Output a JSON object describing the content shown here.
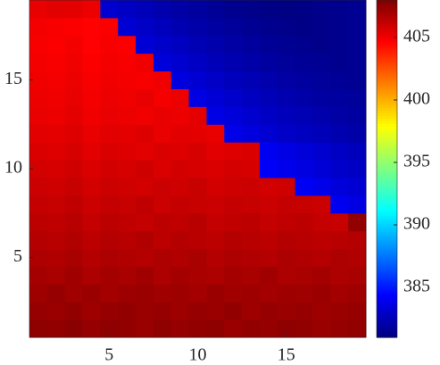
{
  "chart_data": {
    "type": "heatmap",
    "colormap": "jet",
    "x": [
      1,
      2,
      3,
      4,
      5,
      6,
      7,
      8,
      9,
      10,
      11,
      12,
      13,
      14,
      15,
      16,
      17,
      18,
      19
    ],
    "y": [
      1,
      2,
      3,
      4,
      5,
      6,
      7,
      8,
      9,
      10,
      11,
      12,
      13,
      14,
      15,
      16,
      17,
      18,
      19
    ],
    "xlim": [
      0.5,
      19.5
    ],
    "ylim": [
      0.5,
      19.5
    ],
    "xticks": [
      5,
      10,
      15
    ],
    "yticks": [
      5,
      10,
      15
    ],
    "clim": [
      381,
      408
    ],
    "cticks": [
      385,
      390,
      395,
      400,
      405
    ],
    "z": [
      [
        407.6,
        407.5,
        407.7,
        407.4,
        407.6,
        407.5,
        407.3,
        407.6,
        407.4,
        407.5,
        407.6,
        407.3,
        407.5,
        407.4,
        407.6,
        407.5,
        407.3,
        407.4,
        407.5
      ],
      [
        407.4,
        407.3,
        407.5,
        407.2,
        407.4,
        407.5,
        407.3,
        407.4,
        407.2,
        407.4,
        407.3,
        407.5,
        407.2,
        407.4,
        407.3,
        407.4,
        407.2,
        407.3,
        407.4
      ],
      [
        407.2,
        407.4,
        407.1,
        407.3,
        407.0,
        407.2,
        407.3,
        407.1,
        407.2,
        407.0,
        407.3,
        407.1,
        407.2,
        407.0,
        407.2,
        407.1,
        407.3,
        407.0,
        407.2
      ],
      [
        407.0,
        406.9,
        407.1,
        406.8,
        407.0,
        406.9,
        407.1,
        406.8,
        407.0,
        406.9,
        406.8,
        407.0,
        406.9,
        407.1,
        406.8,
        406.9,
        407.0,
        406.8,
        406.9
      ],
      [
        406.8,
        406.7,
        406.9,
        406.6,
        406.8,
        406.7,
        406.6,
        406.8,
        406.7,
        406.9,
        406.6,
        406.8,
        406.7,
        406.6,
        406.8,
        406.7,
        406.6,
        406.8,
        406.7
      ],
      [
        406.6,
        406.5,
        406.7,
        406.4,
        406.6,
        406.5,
        406.7,
        406.4,
        406.6,
        406.5,
        406.4,
        406.6,
        406.5,
        406.4,
        406.6,
        406.5,
        406.4,
        406.5,
        406.6
      ],
      [
        406.4,
        406.3,
        406.5,
        406.2,
        406.4,
        406.3,
        406.2,
        406.4,
        406.3,
        406.5,
        406.2,
        406.3,
        406.4,
        406.2,
        406.3,
        406.4,
        406.2,
        406.1,
        407.5
      ],
      [
        406.2,
        406.1,
        406.3,
        406.0,
        406.2,
        406.1,
        406.3,
        406.0,
        406.2,
        406.1,
        406.0,
        406.2,
        406.1,
        406.0,
        406.2,
        406.1,
        406.0,
        384.0,
        383.6
      ],
      [
        406.0,
        405.9,
        406.1,
        405.8,
        406.0,
        405.9,
        405.8,
        406.0,
        405.9,
        406.1,
        405.8,
        405.9,
        406.0,
        405.8,
        405.9,
        384.1,
        383.8,
        383.4,
        383.2
      ],
      [
        405.8,
        405.7,
        405.9,
        405.6,
        405.8,
        405.7,
        405.9,
        405.6,
        405.8,
        405.7,
        405.6,
        405.8,
        405.7,
        384.2,
        383.9,
        383.6,
        383.3,
        383.0,
        382.8
      ],
      [
        405.6,
        405.5,
        405.7,
        405.4,
        405.6,
        405.5,
        405.4,
        405.6,
        405.5,
        405.7,
        405.4,
        405.5,
        405.6,
        384.0,
        383.7,
        383.4,
        383.1,
        382.8,
        382.6
      ],
      [
        405.4,
        405.3,
        405.5,
        405.2,
        405.4,
        405.3,
        405.5,
        405.2,
        405.4,
        405.3,
        405.2,
        383.8,
        383.5,
        383.2,
        382.9,
        382.7,
        382.5,
        382.3,
        382.1
      ],
      [
        405.2,
        405.1,
        405.3,
        405.0,
        405.2,
        405.1,
        405.0,
        405.2,
        405.1,
        405.3,
        383.7,
        383.4,
        383.1,
        382.8,
        382.6,
        382.4,
        382.2,
        382.0,
        381.9
      ],
      [
        405.1,
        405.0,
        405.2,
        404.9,
        405.1,
        405.0,
        405.2,
        404.9,
        405.1,
        383.6,
        383.3,
        383.0,
        382.7,
        382.5,
        382.3,
        382.1,
        381.9,
        381.8,
        381.7
      ],
      [
        405.0,
        404.9,
        405.1,
        404.8,
        405.0,
        404.9,
        404.8,
        405.0,
        383.5,
        383.2,
        382.9,
        382.6,
        382.4,
        382.2,
        382.0,
        381.8,
        381.7,
        381.6,
        381.5
      ],
      [
        404.9,
        404.8,
        405.0,
        404.7,
        404.9,
        404.8,
        405.0,
        383.4,
        383.1,
        382.8,
        382.5,
        382.3,
        382.1,
        381.9,
        381.7,
        381.6,
        381.5,
        381.4,
        381.5
      ],
      [
        404.8,
        404.7,
        404.9,
        404.6,
        404.8,
        404.7,
        383.3,
        383.0,
        382.7,
        382.4,
        382.2,
        382.0,
        381.8,
        381.6,
        381.5,
        381.4,
        381.3,
        381.4,
        381.5
      ],
      [
        404.9,
        404.8,
        404.7,
        404.6,
        404.7,
        383.2,
        382.9,
        382.6,
        382.3,
        382.1,
        381.9,
        381.7,
        381.5,
        381.4,
        381.3,
        381.2,
        381.3,
        381.4,
        381.5
      ],
      [
        405.2,
        405.4,
        405.3,
        405.1,
        383.1,
        382.8,
        382.5,
        382.2,
        382.0,
        381.8,
        381.6,
        381.4,
        381.3,
        381.2,
        381.1,
        381.2,
        381.3,
        381.4,
        381.5
      ]
    ]
  }
}
